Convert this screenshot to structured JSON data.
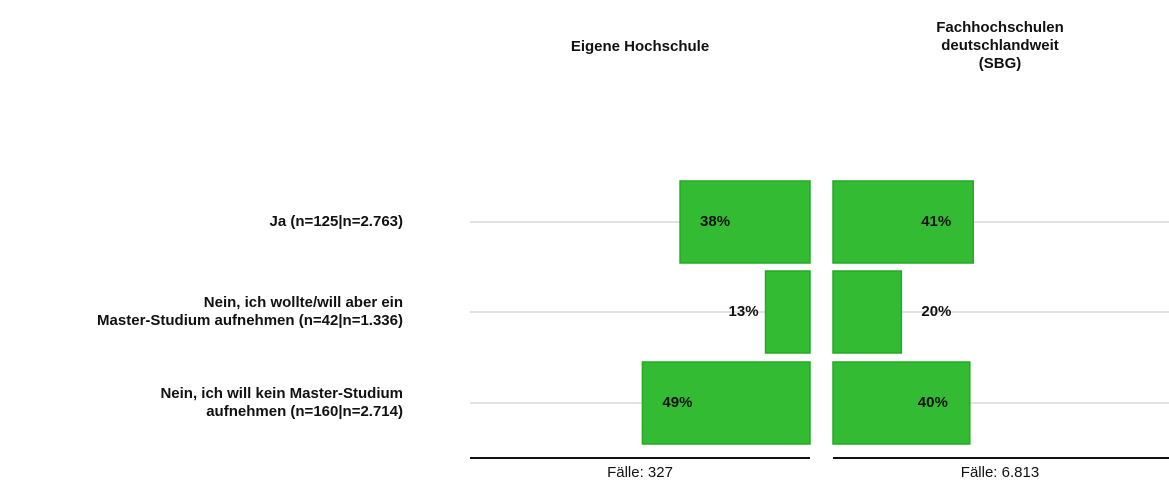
{
  "chart_data": {
    "type": "bar",
    "categories": [
      "Ja (n=125|n=2.763)",
      "Nein, ich wollte/will aber ein\nMaster-Studium aufnehmen (n=42|n=1.336)",
      "Nein, ich will kein Master-Studium\naufnehmen (n=160|n=2.714)"
    ],
    "series": [
      {
        "name": "Eigene Hochschule",
        "color": "#33bb33",
        "values": [
          38,
          13,
          49
        ],
        "value_labels": [
          "38%",
          "13%",
          "49%"
        ],
        "footer": "Fälle: 327"
      },
      {
        "name": "Fachhochschulen\ndeutschlandweit\n(SBG)",
        "color": "#33bb33",
        "values": [
          41,
          20,
          40
        ],
        "value_labels": [
          "41%",
          "20%",
          "40%"
        ],
        "footer": "Fälle: 6.813"
      }
    ]
  }
}
